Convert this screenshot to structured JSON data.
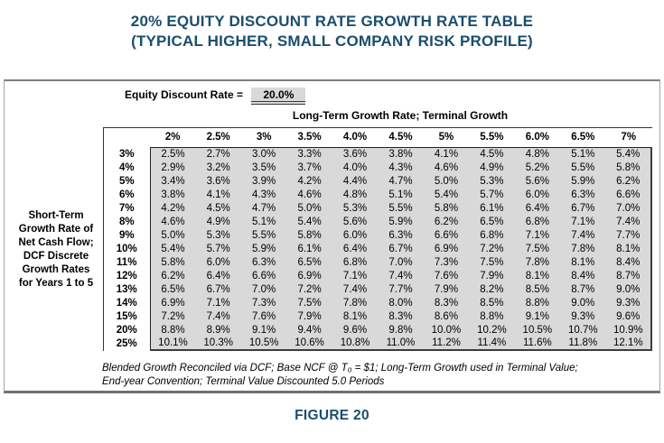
{
  "title": {
    "line1": "20% EQUITY DISCOUNT RATE GROWTH RATE TABLE",
    "line2": "(TYPICAL HIGHER, SMALL COMPANY RISK PROFILE)"
  },
  "panel": {
    "equity_discount_rate_label": "Equity Discount Rate =",
    "equity_discount_rate_value": "20.0%",
    "column_group_header": "Long-Term Growth Rate; Terminal Growth",
    "row_group_label": "Short-Term\nGrowth Rate of\nNet Cash Flow;\nDCF Discrete\nGrowth Rates\nfor Years 1 to 5",
    "footnote_line1": "Blended Growth Reconciled via DCF; Base NCF @ T₀ = $1; Long-Term Growth used in Terminal Value;",
    "footnote_line2": "End-year Convention; Terminal Value Discounted 5.0 Periods"
  },
  "figure_caption": "FIGURE 20",
  "colors": {
    "title_navy": "#1a4e6e",
    "table_fill": "#d9d9d9",
    "table_border": "#222222"
  },
  "chart_data": {
    "type": "table",
    "title": "20% Equity Discount Rate Growth Rate Table (Typical Higher, Small Company Risk Profile)",
    "equity_discount_rate": "20.0%",
    "column_axis_label": "Long-Term Growth Rate; Terminal Growth",
    "row_axis_label": "Short-Term Growth Rate of Net Cash Flow; DCF Discrete Growth Rates for Years 1 to 5",
    "columns": [
      "2%",
      "2.5%",
      "3%",
      "3.5%",
      "4.0%",
      "4.5%",
      "5%",
      "5.5%",
      "6.0%",
      "6.5%",
      "7%"
    ],
    "rows": [
      {
        "label": "3%",
        "values": [
          "2.5%",
          "2.7%",
          "3.0%",
          "3.3%",
          "3.6%",
          "3.8%",
          "4.1%",
          "4.5%",
          "4.8%",
          "5.1%",
          "5.4%"
        ]
      },
      {
        "label": "4%",
        "values": [
          "2.9%",
          "3.2%",
          "3.5%",
          "3.7%",
          "4.0%",
          "4.3%",
          "4.6%",
          "4.9%",
          "5.2%",
          "5.5%",
          "5.8%"
        ]
      },
      {
        "label": "5%",
        "values": [
          "3.4%",
          "3.6%",
          "3.9%",
          "4.2%",
          "4.4%",
          "4.7%",
          "5.0%",
          "5.3%",
          "5.6%",
          "5.9%",
          "6.2%"
        ]
      },
      {
        "label": "6%",
        "values": [
          "3.8%",
          "4.1%",
          "4.3%",
          "4.6%",
          "4.8%",
          "5.1%",
          "5.4%",
          "5.7%",
          "6.0%",
          "6.3%",
          "6.6%"
        ]
      },
      {
        "label": "7%",
        "values": [
          "4.2%",
          "4.5%",
          "4.7%",
          "5.0%",
          "5.3%",
          "5.5%",
          "5.8%",
          "6.1%",
          "6.4%",
          "6.7%",
          "7.0%"
        ]
      },
      {
        "label": "8%",
        "values": [
          "4.6%",
          "4.9%",
          "5.1%",
          "5.4%",
          "5.6%",
          "5.9%",
          "6.2%",
          "6.5%",
          "6.8%",
          "7.1%",
          "7.4%"
        ]
      },
      {
        "label": "9%",
        "values": [
          "5.0%",
          "5.3%",
          "5.5%",
          "5.8%",
          "6.0%",
          "6.3%",
          "6.6%",
          "6.8%",
          "7.1%",
          "7.4%",
          "7.7%"
        ]
      },
      {
        "label": "10%",
        "values": [
          "5.4%",
          "5.7%",
          "5.9%",
          "6.1%",
          "6.4%",
          "6.7%",
          "6.9%",
          "7.2%",
          "7.5%",
          "7.8%",
          "8.1%"
        ]
      },
      {
        "label": "11%",
        "values": [
          "5.8%",
          "6.0%",
          "6.3%",
          "6.5%",
          "6.8%",
          "7.0%",
          "7.3%",
          "7.5%",
          "7.8%",
          "8.1%",
          "8.4%"
        ]
      },
      {
        "label": "12%",
        "values": [
          "6.2%",
          "6.4%",
          "6.6%",
          "6.9%",
          "7.1%",
          "7.4%",
          "7.6%",
          "7.9%",
          "8.1%",
          "8.4%",
          "8.7%"
        ]
      },
      {
        "label": "13%",
        "values": [
          "6.5%",
          "6.7%",
          "7.0%",
          "7.2%",
          "7.4%",
          "7.7%",
          "7.9%",
          "8.2%",
          "8.5%",
          "8.7%",
          "9.0%"
        ]
      },
      {
        "label": "14%",
        "values": [
          "6.9%",
          "7.1%",
          "7.3%",
          "7.5%",
          "7.8%",
          "8.0%",
          "8.3%",
          "8.5%",
          "8.8%",
          "9.0%",
          "9.3%"
        ]
      },
      {
        "label": "15%",
        "values": [
          "7.2%",
          "7.4%",
          "7.6%",
          "7.9%",
          "8.1%",
          "8.3%",
          "8.6%",
          "8.8%",
          "9.1%",
          "9.3%",
          "9.6%"
        ]
      },
      {
        "label": "20%",
        "values": [
          "8.8%",
          "8.9%",
          "9.1%",
          "9.4%",
          "9.6%",
          "9.8%",
          "10.0%",
          "10.2%",
          "10.5%",
          "10.7%",
          "10.9%"
        ]
      },
      {
        "label": "25%",
        "values": [
          "10.1%",
          "10.3%",
          "10.5%",
          "10.6%",
          "10.8%",
          "11.0%",
          "11.2%",
          "11.4%",
          "11.6%",
          "11.8%",
          "12.1%"
        ]
      }
    ]
  }
}
